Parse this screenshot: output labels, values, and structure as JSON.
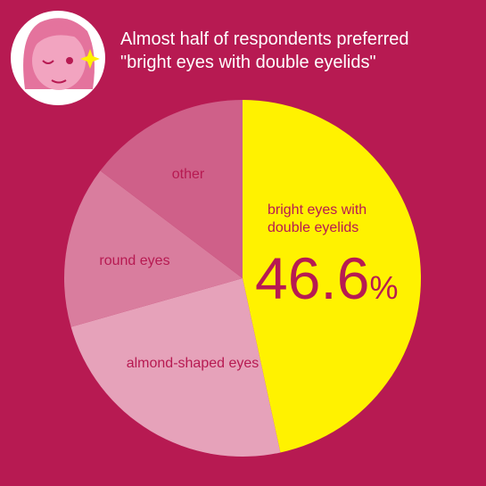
{
  "chart_data": {
    "type": "pie",
    "title": "Almost half of respondents preferred\n\"bright eyes with double eyelids\"",
    "categories": [
      "bright eyes with\ndouble eyelids",
      "almond-shaped eyes",
      "round eyes",
      "other"
    ],
    "values": [
      46.6,
      24.0,
      14.7,
      14.7
    ],
    "value_labels": [
      "46.6%",
      null,
      null,
      null
    ],
    "colors": [
      "#fff200",
      "#e6a2ba",
      "#d97d9e",
      "#cf6089"
    ]
  }
}
